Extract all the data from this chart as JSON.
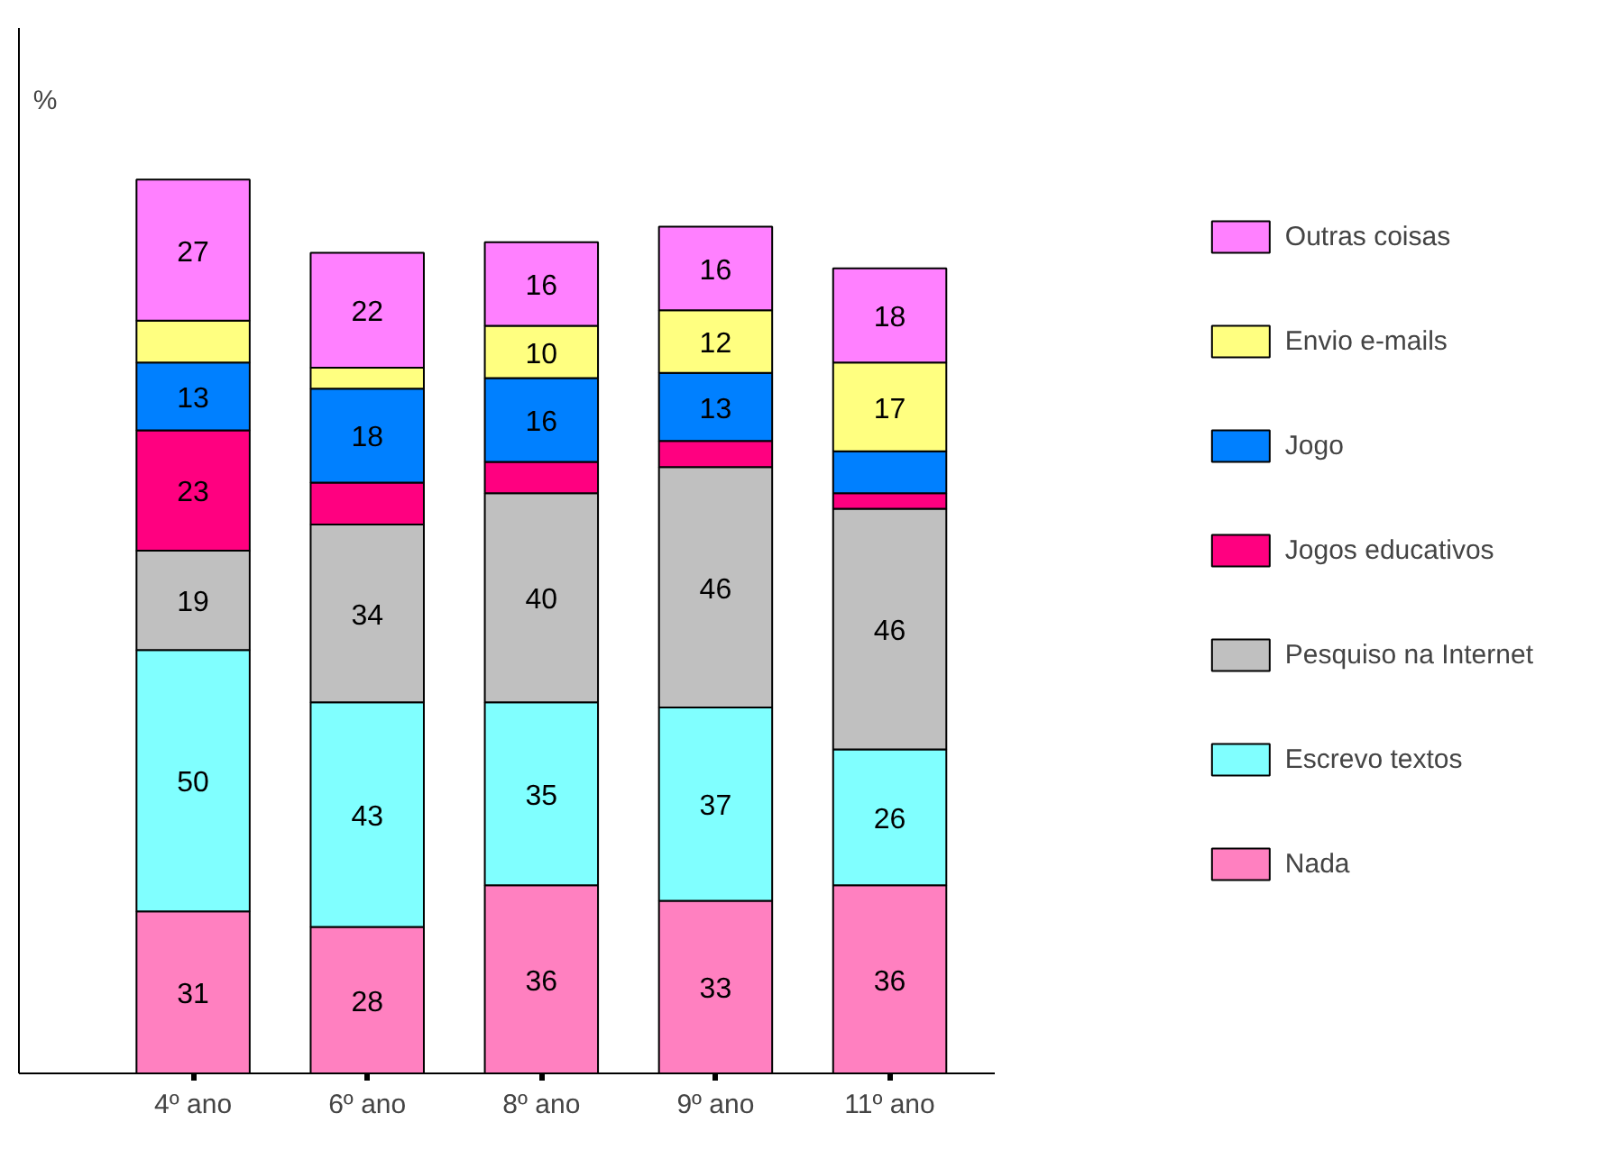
{
  "chart_data": {
    "type": "bar",
    "stacked": true,
    "ylabel": "%",
    "categories": [
      "4º ano",
      "6º ano",
      "8º ano",
      "9º ano",
      "11º ano"
    ],
    "ylim": [
      0,
      200
    ],
    "tick_labels": "x",
    "grid": false,
    "legend": "right",
    "series": [
      {
        "name": "Nada",
        "color": "#ff80c0",
        "values": [
          31,
          28,
          36,
          33,
          36
        ],
        "value_labels": [
          "31",
          "28",
          "36",
          "33",
          "36"
        ]
      },
      {
        "name": "Escrevo textos",
        "color": "#80ffff",
        "values": [
          50,
          43,
          35,
          37,
          26
        ],
        "value_labels": [
          "50",
          "43",
          "35",
          "37",
          "26"
        ]
      },
      {
        "name": "Pesquiso na Internet",
        "color": "#c0c0c0",
        "values": [
          19,
          34,
          40,
          46,
          46
        ],
        "value_labels": [
          "19",
          "34",
          "40",
          "46",
          "46"
        ]
      },
      {
        "name": "Jogos educativos",
        "color": "#ff0080",
        "values": [
          23,
          8,
          6,
          5,
          3
        ],
        "value_labels": [
          "23",
          null,
          null,
          null,
          null
        ]
      },
      {
        "name": "Jogo",
        "color": "#0080ff",
        "values": [
          13,
          18,
          16,
          13,
          8
        ],
        "value_labels": [
          "13",
          "18",
          "16",
          "13",
          null
        ]
      },
      {
        "name": "Envio e-mails",
        "color": "#ffff80",
        "values": [
          8,
          4,
          10,
          12,
          17
        ],
        "value_labels": [
          null,
          null,
          "10",
          "12",
          "17"
        ]
      },
      {
        "name": "Outras coisas",
        "color": "#ff80ff",
        "values": [
          27,
          22,
          16,
          16,
          18
        ],
        "value_labels": [
          "27",
          "22",
          "16",
          "16",
          "18"
        ]
      }
    ]
  }
}
